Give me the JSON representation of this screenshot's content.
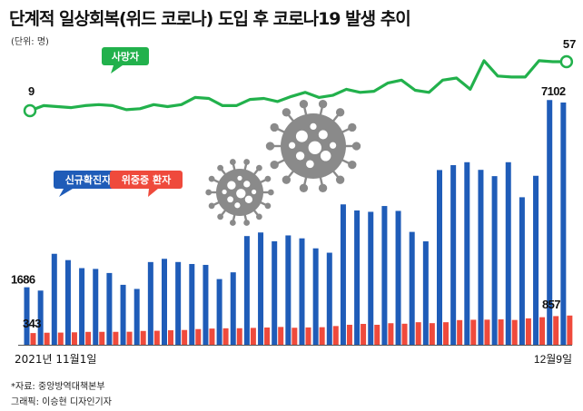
{
  "title": "단계적 일상회복(위드 코로나) 도입 후 코로나19 발생 추이",
  "unit": "(단위: 명)",
  "source": "*자료: 중앙방역대책본부",
  "credit": "그래픽: 이승현 디자인기자",
  "colors": {
    "confirmed": "#1f5cb8",
    "severe": "#ef4a3c",
    "deaths": "#22b14c",
    "label_bg_confirmed": "#1f5cb8",
    "label_bg_severe": "#ef4a3c",
    "label_bg_deaths": "#22b14c",
    "virus": "#8a8a8a"
  },
  "chart_data": {
    "type": "bar",
    "x_start_label": "2021년 11월1일",
    "x_end_label": "12월9일",
    "series": [
      {
        "name": "신규확진자",
        "values": [
          1686,
          1589,
          2667,
          2482,
          2247,
          2224,
          2104,
          1758,
          1637,
          2425,
          2520,
          2426,
          2368,
          2342,
          1926,
          2124,
          3187,
          3292,
          3034,
          3206,
          3120,
          2827,
          2699,
          4116,
          3938,
          3898,
          4068,
          3925,
          3309,
          3032,
          5123,
          5266,
          5352,
          5128,
          4944,
          5352,
          4325,
          4954,
          7175,
          7102
        ],
        "first_label": "1686",
        "last_label": "7102"
      },
      {
        "name": "위중증 환자",
        "values": [
          343,
          353,
          357,
          365,
          378,
          379,
          379,
          382,
          405,
          411,
          425,
          433,
          460,
          475,
          483,
          485,
          495,
          506,
          522,
          499,
          508,
          515,
          549,
          586,
          612,
          586,
          632,
          617,
          661,
          634,
          661,
          723,
          733,
          736,
          744,
          727,
          774,
          808,
          840,
          857
        ],
        "first_label": "343",
        "last_label": "857"
      },
      {
        "name": "사망자",
        "values": [
          9,
          14,
          13,
          12,
          14,
          15,
          14,
          10,
          11,
          15,
          13,
          15,
          22,
          21,
          14,
          14,
          20,
          21,
          18,
          23,
          27,
          22,
          24,
          30,
          27,
          28,
          36,
          39,
          29,
          27,
          39,
          41,
          30,
          58,
          43,
          42,
          42,
          58,
          57,
          57
        ],
        "first_label": "9",
        "last_label": "57"
      }
    ],
    "ylim_bars": [
      0,
      7500
    ]
  }
}
